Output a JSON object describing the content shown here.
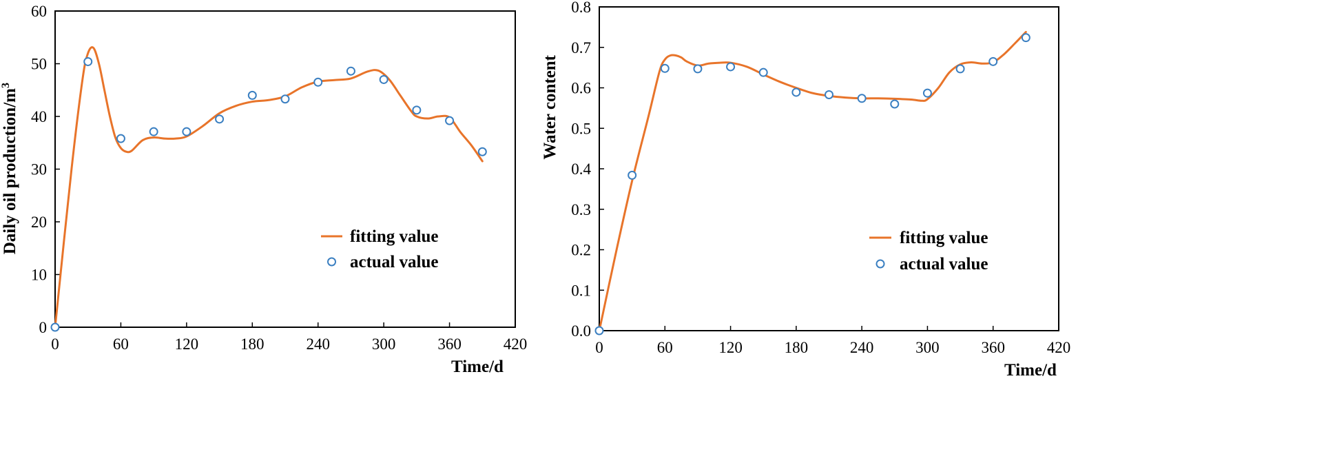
{
  "chart_data": [
    {
      "type": "line",
      "title": "",
      "xlabel": "Time/d",
      "ylabel_main": "Daily oil production/m",
      "ylabel_sup": "3",
      "xlim": [
        0,
        420
      ],
      "ylim": [
        0,
        60
      ],
      "xticks": [
        0,
        60,
        120,
        180,
        240,
        300,
        360,
        420
      ],
      "yticks": [
        0,
        10,
        20,
        30,
        40,
        50,
        60
      ],
      "legend_position": "lower-right",
      "series": [
        {
          "name": "fitting value",
          "kind": "smooth-line",
          "color": "#e8742a",
          "x": [
            0,
            15,
            25,
            30,
            35,
            40,
            45,
            50,
            55,
            60,
            65,
            70,
            80,
            90,
            100,
            110,
            120,
            135,
            150,
            165,
            180,
            195,
            210,
            225,
            240,
            255,
            270,
            285,
            295,
            305,
            315,
            325,
            330,
            340,
            350,
            360,
            370,
            380,
            390
          ],
          "values": [
            0,
            30,
            47,
            52,
            53,
            50,
            45,
            40,
            36,
            34,
            33.3,
            33.5,
            35.5,
            36,
            35.8,
            35.8,
            36.2,
            38.2,
            40.6,
            42,
            42.8,
            43.1,
            43.8,
            45.5,
            46.6,
            46.9,
            47.2,
            48.5,
            48.7,
            47,
            44,
            41,
            40,
            39.6,
            40,
            39.8,
            37,
            34.5,
            31.5
          ]
        },
        {
          "name": "actual value",
          "kind": "scatter",
          "color": "#3a7fc1",
          "x": [
            0,
            30,
            60,
            90,
            120,
            150,
            180,
            210,
            240,
            270,
            300,
            330,
            360,
            390
          ],
          "values": [
            0,
            50.4,
            35.8,
            37.1,
            37.1,
            39.5,
            44.0,
            43.3,
            46.5,
            48.6,
            47.0,
            41.2,
            39.2,
            33.3
          ]
        }
      ]
    },
    {
      "type": "line",
      "title": "",
      "xlabel": "Time/d",
      "ylabel_main": "Water content",
      "ylabel_sup": "",
      "xlim": [
        0,
        420
      ],
      "ylim": [
        0,
        0.8
      ],
      "xticks": [
        0,
        60,
        120,
        180,
        240,
        300,
        360,
        420
      ],
      "yticks": [
        0,
        0.1,
        0.2,
        0.3,
        0.4,
        0.5,
        0.6,
        0.7,
        0.8
      ],
      "legend_position": "lower-right",
      "series": [
        {
          "name": "fitting value",
          "kind": "smooth-line",
          "color": "#e8742a",
          "x": [
            0,
            15,
            30,
            45,
            55,
            60,
            65,
            70,
            75,
            80,
            90,
            100,
            110,
            120,
            135,
            150,
            165,
            180,
            195,
            210,
            225,
            240,
            255,
            270,
            285,
            295,
            300,
            310,
            320,
            330,
            340,
            350,
            360,
            370,
            380,
            390
          ],
          "values": [
            0,
            0.19,
            0.37,
            0.53,
            0.64,
            0.67,
            0.68,
            0.68,
            0.675,
            0.665,
            0.655,
            0.66,
            0.662,
            0.662,
            0.652,
            0.633,
            0.615,
            0.6,
            0.587,
            0.58,
            0.576,
            0.574,
            0.574,
            0.573,
            0.571,
            0.568,
            0.572,
            0.6,
            0.638,
            0.658,
            0.663,
            0.66,
            0.663,
            0.683,
            0.71,
            0.738
          ]
        },
        {
          "name": "actual value",
          "kind": "scatter",
          "color": "#3a7fc1",
          "x": [
            0,
            30,
            60,
            90,
            120,
            150,
            180,
            210,
            240,
            270,
            300,
            330,
            360,
            390
          ],
          "values": [
            0,
            0.384,
            0.648,
            0.647,
            0.652,
            0.638,
            0.589,
            0.583,
            0.574,
            0.56,
            0.587,
            0.647,
            0.665,
            0.724
          ]
        }
      ]
    }
  ]
}
